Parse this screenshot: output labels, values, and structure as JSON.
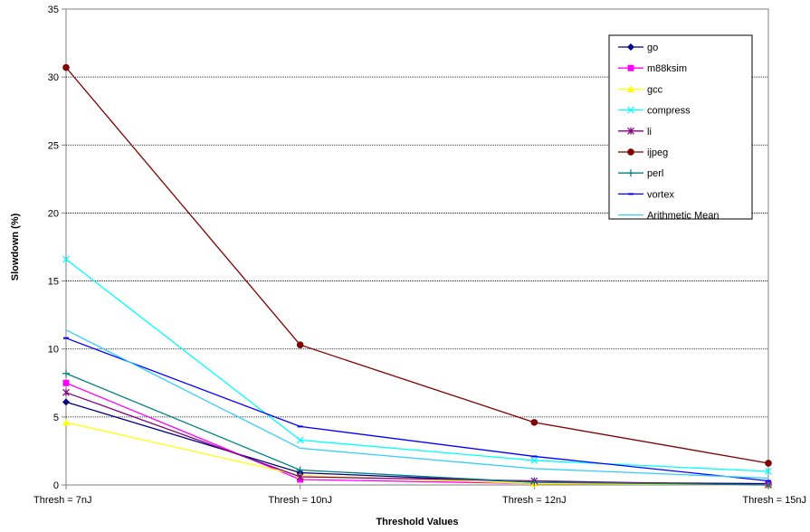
{
  "chart_data": {
    "type": "line",
    "xlabel": "Threshold Values",
    "ylabel": "Slowdown (%)",
    "categories": [
      "Thresh = 7nJ",
      "Thresh = 10nJ",
      "Thresh = 12nJ",
      "Thresh = 15nJ"
    ],
    "ylim": [
      0,
      35
    ],
    "yticks": [
      0,
      5,
      10,
      15,
      20,
      25,
      30,
      35
    ],
    "grid": true,
    "legend_position": "top-right",
    "series": [
      {
        "name": "go",
        "color": "#000080",
        "marker": "diamond",
        "values": [
          6.1,
          0.9,
          0.2,
          0.1
        ]
      },
      {
        "name": "m88ksim",
        "color": "#ff00ff",
        "marker": "square",
        "values": [
          7.5,
          0.4,
          0.1,
          0.0
        ]
      },
      {
        "name": "gcc",
        "color": "#ffff00",
        "marker": "triangle",
        "values": [
          4.6,
          0.7,
          0.1,
          0.0
        ]
      },
      {
        "name": "compress",
        "color": "#00ffff",
        "marker": "x",
        "values": [
          16.6,
          3.3,
          1.8,
          1.0
        ]
      },
      {
        "name": "li",
        "color": "#800080",
        "marker": "star",
        "values": [
          6.8,
          0.6,
          0.3,
          0.0
        ]
      },
      {
        "name": "ijpeg",
        "color": "#800000",
        "marker": "circle",
        "values": [
          30.7,
          10.3,
          4.6,
          1.6
        ]
      },
      {
        "name": "perl",
        "color": "#008080",
        "marker": "plus",
        "values": [
          8.2,
          1.1,
          0.2,
          0.0
        ]
      },
      {
        "name": "vortex",
        "color": "#0000ff",
        "marker": "dash",
        "values": [
          10.8,
          4.3,
          2.1,
          0.3
        ]
      },
      {
        "name": "Arithmetic Mean",
        "color": "#33ccff",
        "marker": "line",
        "values": [
          11.4,
          2.7,
          1.2,
          0.5
        ]
      }
    ]
  }
}
